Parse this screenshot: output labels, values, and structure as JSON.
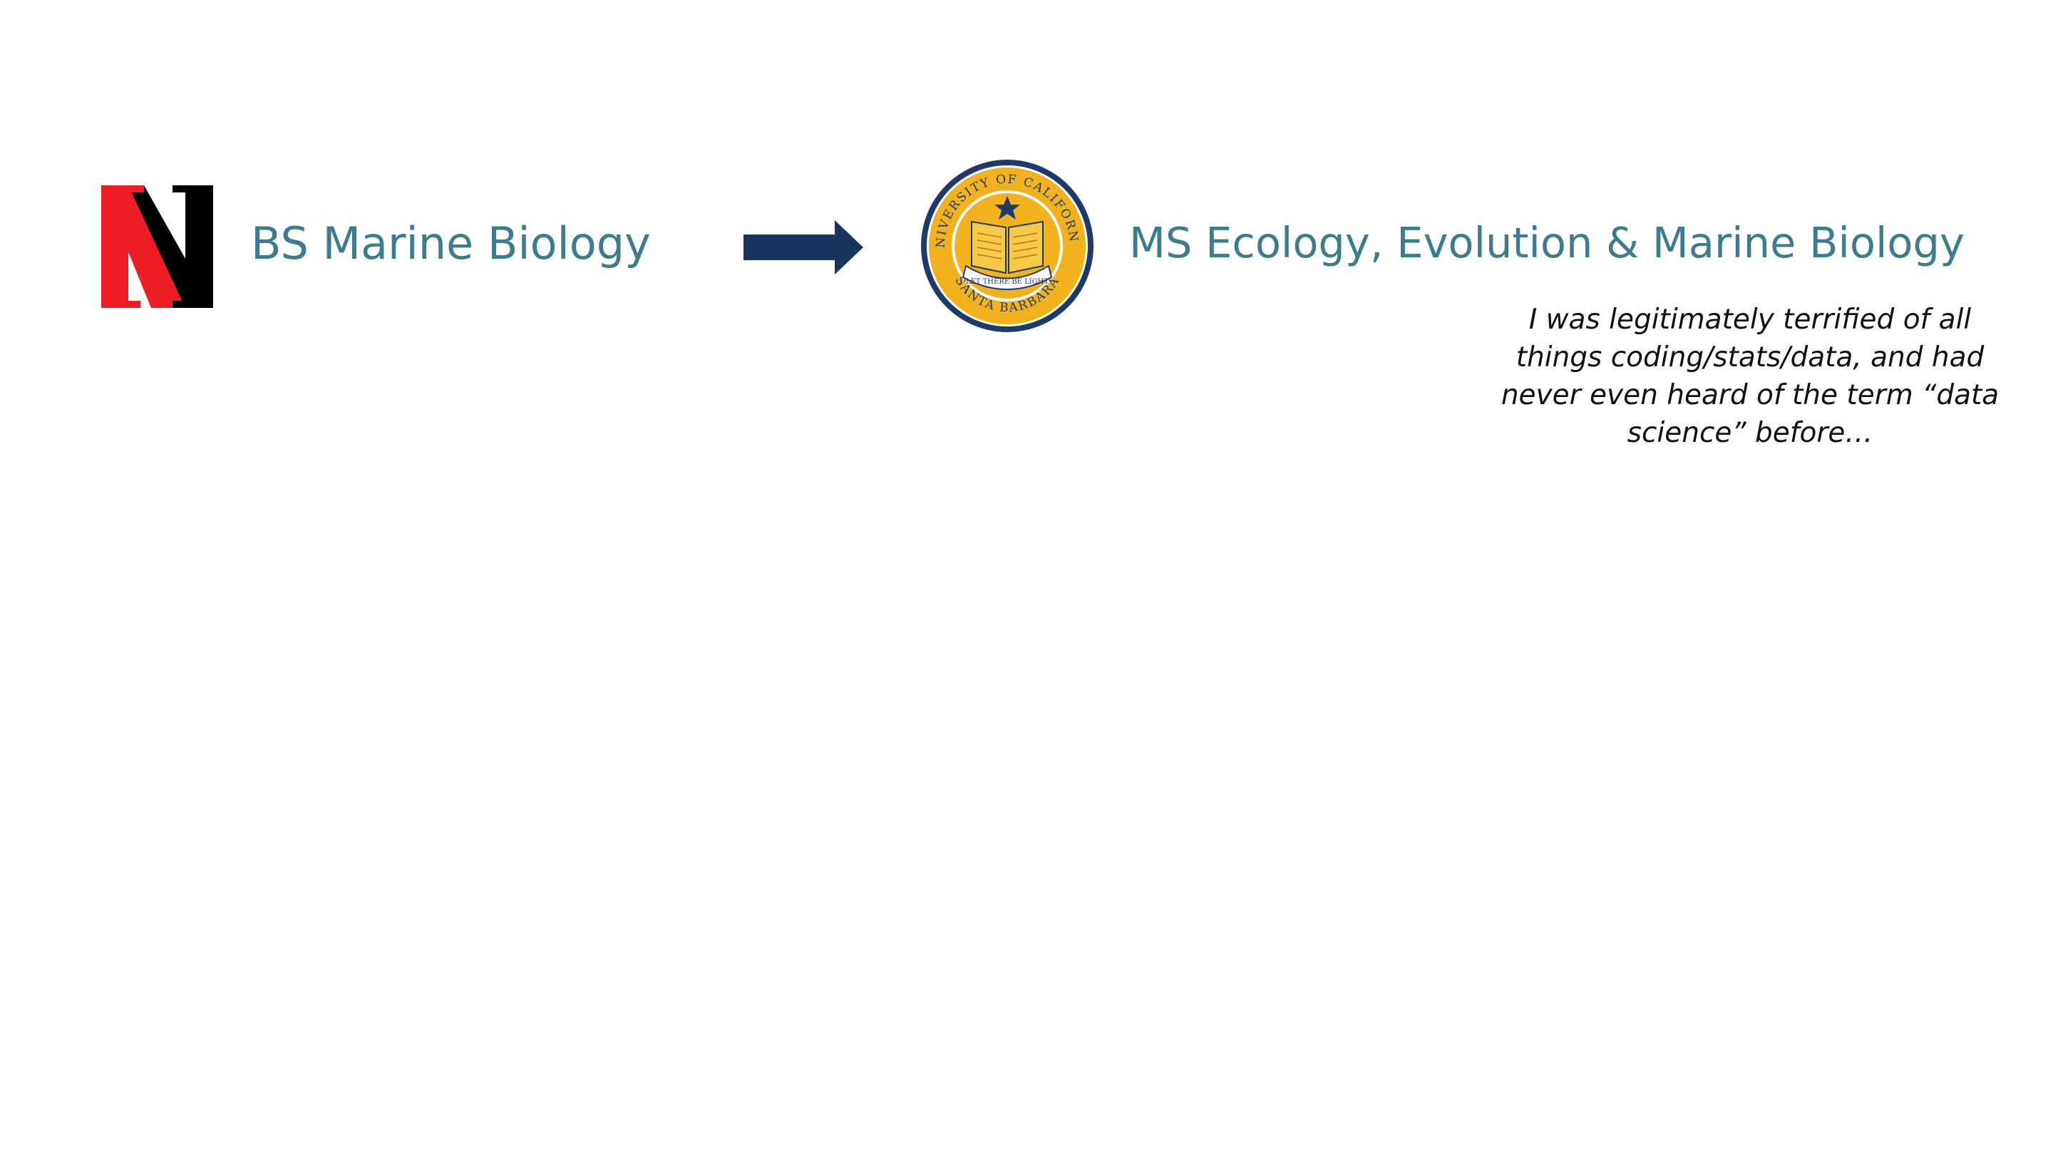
{
  "left": {
    "logo_icon": "northeastern-n-logo",
    "degree": "BS Marine Biology"
  },
  "arrow_icon": "right-arrow-icon",
  "right": {
    "seal_icon": "uc-santa-barbara-seal",
    "seal_text": {
      "top": "UNIVERSITY OF CALIFORNIA",
      "bottom": "SANTA BARBARA",
      "ribbon": "LET THERE BE LIGHT"
    },
    "degree": "MS Ecology, Evolution & Marine Biology"
  },
  "quote": "I was legitimately terrified of all things coding/stats/data, and had never even heard of the term “data science” before…",
  "colors": {
    "label": "#3b7d8c",
    "arrow": "#17355c",
    "logo_red": "#ee1c25",
    "logo_black": "#000000",
    "seal_gold": "#f2b21e",
    "seal_navy": "#1f3a68"
  }
}
